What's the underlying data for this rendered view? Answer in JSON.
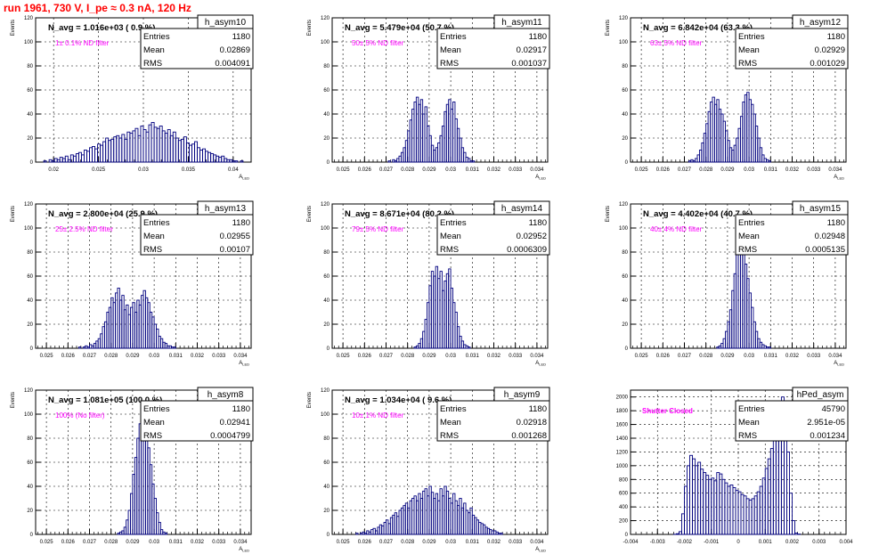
{
  "run_title": "run 1961,   730 V, I_pe ≈ 0.3 nA, 120 Hz",
  "colors": {
    "histogram": "#00007f",
    "annotation": "#ff00ff",
    "title": "#ff0000"
  },
  "chart_data": [
    {
      "type": "histogram",
      "name": "h_asym10",
      "navg": "N_avg = 1.016e+03 ( 0.9 %)",
      "note": "1± 0.1% ND filter",
      "stats": [
        [
          "Entries",
          "1180"
        ],
        [
          "Mean",
          "0.02869"
        ],
        [
          "RMS",
          "0.004091"
        ]
      ],
      "ylabel": "Events",
      "xlabel": "A_LED",
      "xlim": [
        0.018,
        0.042
      ],
      "ylim": [
        0,
        120
      ],
      "xticks": [
        "0.02",
        "0.025",
        "0.03",
        "0.035",
        "0.04"
      ],
      "xtick_values": [
        0.02,
        0.025,
        0.03,
        0.035,
        0.04
      ],
      "yticks": [
        0,
        20,
        40,
        60,
        80,
        100,
        120
      ],
      "bins": 80,
      "counts": [
        0,
        0,
        0,
        1,
        0,
        2,
        1,
        3,
        2,
        4,
        3,
        5,
        2,
        6,
        5,
        7,
        8,
        6,
        10,
        9,
        12,
        13,
        11,
        15,
        14,
        17,
        20,
        18,
        19,
        21,
        22,
        20,
        23,
        19,
        25,
        24,
        26,
        28,
        22,
        30,
        27,
        25,
        31,
        33,
        29,
        28,
        30,
        26,
        24,
        27,
        22,
        25,
        20,
        18,
        19,
        21,
        16,
        14,
        15,
        17,
        12,
        10,
        11,
        9,
        8,
        7,
        6,
        5,
        4,
        5,
        3,
        2,
        2,
        1,
        1,
        0,
        1,
        0,
        0,
        0
      ]
    },
    {
      "type": "histogram",
      "name": "h_asym11",
      "navg": "N_avg = 5.479e+04 (50.7 %)",
      "note": "50± 5% ND filter",
      "stats": [
        [
          "Entries",
          "1180"
        ],
        [
          "Mean",
          "0.02917"
        ],
        [
          "RMS",
          "0.001037"
        ]
      ],
      "ylabel": "Events",
      "xlabel": "A_LED",
      "xlim": [
        0.0245,
        0.0345
      ],
      "ylim": [
        0,
        120
      ],
      "xticks": [
        "0.025",
        "0.026",
        "0.027",
        "0.028",
        "0.029",
        "0.03",
        "0.031",
        "0.032",
        "0.033",
        "0.034"
      ],
      "xtick_values": [
        0.025,
        0.026,
        0.027,
        0.028,
        0.029,
        0.03,
        0.031,
        0.032,
        0.033,
        0.034
      ],
      "yticks": [
        0,
        20,
        40,
        60,
        80,
        100,
        120
      ],
      "bins": 100,
      "counts": [
        0,
        0,
        0,
        0,
        0,
        0,
        0,
        0,
        0,
        0,
        0,
        0,
        0,
        0,
        0,
        0,
        0,
        0,
        0,
        0,
        0,
        0,
        0,
        0,
        0,
        0,
        1,
        0,
        2,
        1,
        3,
        5,
        8,
        12,
        18,
        26,
        35,
        44,
        50,
        54,
        48,
        52,
        40,
        46,
        30,
        22,
        14,
        10,
        12,
        16,
        22,
        30,
        42,
        48,
        52,
        44,
        50,
        36,
        28,
        20,
        12,
        8,
        4,
        3,
        1,
        1,
        0,
        0,
        0,
        0,
        0,
        0,
        0,
        0,
        0,
        0,
        0,
        0,
        0,
        0,
        0,
        0,
        0,
        0,
        0,
        0,
        0,
        0,
        0,
        0,
        0,
        0,
        0,
        0,
        0,
        0,
        0,
        0,
        0,
        0
      ]
    },
    {
      "type": "histogram",
      "name": "h_asym12",
      "navg": "N_avg = 6.842e+04 (63.3 %)",
      "note": "63± 5% ND filter",
      "stats": [
        [
          "Entries",
          "1180"
        ],
        [
          "Mean",
          "0.02929"
        ],
        [
          "RMS",
          "0.001029"
        ]
      ],
      "ylabel": "Events",
      "xlabel": "A_LED",
      "xlim": [
        0.0245,
        0.0345
      ],
      "ylim": [
        0,
        120
      ],
      "xticks": [
        "0.025",
        "0.026",
        "0.027",
        "0.028",
        "0.029",
        "0.03",
        "0.031",
        "0.032",
        "0.033",
        "0.034"
      ],
      "xtick_values": [
        0.025,
        0.026,
        0.027,
        0.028,
        0.029,
        0.03,
        0.031,
        0.032,
        0.033,
        0.034
      ],
      "yticks": [
        0,
        20,
        40,
        60,
        80,
        100,
        120
      ],
      "bins": 100,
      "counts": [
        0,
        0,
        0,
        0,
        0,
        0,
        0,
        0,
        0,
        0,
        0,
        0,
        0,
        0,
        0,
        0,
        0,
        0,
        0,
        0,
        0,
        0,
        0,
        0,
        0,
        0,
        0,
        1,
        2,
        1,
        3,
        6,
        10,
        16,
        24,
        32,
        42,
        50,
        54,
        48,
        52,
        44,
        40,
        34,
        26,
        18,
        12,
        10,
        14,
        20,
        28,
        38,
        50,
        56,
        58,
        52,
        48,
        40,
        30,
        20,
        12,
        6,
        3,
        2,
        1,
        0,
        0,
        0,
        0,
        0,
        0,
        0,
        0,
        0,
        0,
        0,
        0,
        0,
        0,
        0,
        0,
        0,
        0,
        0,
        0,
        0,
        0,
        0,
        0,
        0,
        0,
        0,
        0,
        0,
        0,
        0,
        0,
        0,
        0,
        0
      ]
    },
    {
      "type": "histogram",
      "name": "h_asym13",
      "navg": "N_avg = 2.800e+04 (25.9 %)",
      "note": "25± 2.5% ND filter",
      "stats": [
        [
          "Entries",
          "1180"
        ],
        [
          "Mean",
          "0.02955"
        ],
        [
          "RMS",
          "0.00107"
        ]
      ],
      "ylabel": "Events",
      "xlabel": "A_LED",
      "xlim": [
        0.0245,
        0.0345
      ],
      "ylim": [
        0,
        120
      ],
      "xticks": [
        "0.025",
        "0.026",
        "0.027",
        "0.028",
        "0.029",
        "0.03",
        "0.031",
        "0.032",
        "0.033",
        "0.034"
      ],
      "xtick_values": [
        0.025,
        0.026,
        0.027,
        0.028,
        0.029,
        0.03,
        0.031,
        0.032,
        0.033,
        0.034
      ],
      "yticks": [
        0,
        20,
        40,
        60,
        80,
        100,
        120
      ],
      "bins": 100,
      "counts": [
        0,
        0,
        0,
        0,
        0,
        0,
        0,
        0,
        0,
        0,
        0,
        0,
        0,
        0,
        0,
        0,
        0,
        0,
        0,
        0,
        1,
        0,
        1,
        2,
        1,
        3,
        2,
        4,
        6,
        8,
        12,
        18,
        22,
        30,
        34,
        42,
        38,
        46,
        50,
        40,
        44,
        32,
        36,
        28,
        34,
        38,
        30,
        40,
        36,
        44,
        48,
        42,
        38,
        30,
        26,
        20,
        16,
        10,
        8,
        5,
        4,
        2,
        2,
        1,
        1,
        0,
        0,
        0,
        0,
        0,
        0,
        0,
        0,
        0,
        0,
        0,
        0,
        0,
        0,
        0,
        0,
        0,
        0,
        0,
        0,
        0,
        0,
        0,
        0,
        0,
        0,
        0,
        0,
        0,
        0,
        0,
        0,
        0,
        0,
        0
      ]
    },
    {
      "type": "histogram",
      "name": "h_asym14",
      "navg": "N_avg = 8.671e+04 (80.2 %)",
      "note": "79± 5% ND filter",
      "stats": [
        [
          "Entries",
          "1180"
        ],
        [
          "Mean",
          "0.02952"
        ],
        [
          "RMS",
          "0.0006309"
        ]
      ],
      "ylabel": "Events",
      "xlabel": "A_LED",
      "xlim": [
        0.0245,
        0.0345
      ],
      "ylim": [
        0,
        120
      ],
      "xticks": [
        "0.025",
        "0.026",
        "0.027",
        "0.028",
        "0.029",
        "0.03",
        "0.031",
        "0.032",
        "0.033",
        "0.034"
      ],
      "xtick_values": [
        0.025,
        0.026,
        0.027,
        0.028,
        0.029,
        0.03,
        0.031,
        0.032,
        0.033,
        0.034
      ],
      "yticks": [
        0,
        20,
        40,
        60,
        80,
        100,
        120
      ],
      "bins": 100,
      "counts": [
        0,
        0,
        0,
        0,
        0,
        0,
        0,
        0,
        0,
        0,
        0,
        0,
        0,
        0,
        0,
        0,
        0,
        0,
        0,
        0,
        0,
        0,
        0,
        0,
        0,
        0,
        0,
        0,
        0,
        0,
        0,
        0,
        0,
        0,
        0,
        0,
        0,
        0,
        1,
        2,
        4,
        8,
        14,
        24,
        38,
        52,
        64,
        60,
        68,
        58,
        64,
        48,
        56,
        62,
        66,
        50,
        38,
        30,
        18,
        10,
        6,
        3,
        2,
        1,
        0,
        0,
        0,
        0,
        0,
        0,
        0,
        0,
        0,
        0,
        0,
        0,
        0,
        0,
        0,
        0,
        0,
        0,
        0,
        0,
        0,
        0,
        0,
        0,
        0,
        0,
        0,
        0,
        0,
        0,
        0,
        0,
        0,
        0,
        0,
        0
      ]
    },
    {
      "type": "histogram",
      "name": "h_asym15",
      "navg": "N_avg = 4.402e+04 (40.7 %)",
      "note": "40± 4% ND filter",
      "stats": [
        [
          "Entries",
          "1180"
        ],
        [
          "Mean",
          "0.02948"
        ],
        [
          "RMS",
          "0.0005135"
        ]
      ],
      "ylabel": "Events",
      "xlabel": "A_LED",
      "xlim": [
        0.0245,
        0.0345
      ],
      "ylim": [
        0,
        120
      ],
      "xticks": [
        "0.025",
        "0.026",
        "0.027",
        "0.028",
        "0.029",
        "0.03",
        "0.031",
        "0.032",
        "0.033",
        "0.034"
      ],
      "xtick_values": [
        0.025,
        0.026,
        0.027,
        0.028,
        0.029,
        0.03,
        0.031,
        0.032,
        0.033,
        0.034
      ],
      "yticks": [
        0,
        20,
        40,
        60,
        80,
        100,
        120
      ],
      "bins": 100,
      "counts": [
        0,
        0,
        0,
        0,
        0,
        0,
        0,
        0,
        0,
        0,
        0,
        0,
        0,
        0,
        0,
        0,
        0,
        0,
        0,
        0,
        0,
        0,
        0,
        0,
        0,
        0,
        0,
        0,
        0,
        0,
        0,
        0,
        0,
        0,
        0,
        0,
        0,
        0,
        0,
        0,
        1,
        2,
        4,
        8,
        14,
        22,
        32,
        48,
        62,
        80,
        98,
        84,
        90,
        70,
        58,
        46,
        34,
        22,
        14,
        8,
        5,
        3,
        2,
        1,
        1,
        0,
        0,
        0,
        0,
        0,
        0,
        0,
        0,
        0,
        0,
        0,
        0,
        0,
        0,
        0,
        0,
        0,
        0,
        0,
        0,
        0,
        0,
        0,
        0,
        0,
        0,
        0,
        0,
        0,
        0,
        0,
        0,
        0,
        0,
        0
      ]
    },
    {
      "type": "histogram",
      "name": "h_asym8",
      "navg": "N_avg = 1.081e+05 (100.0 %)",
      "note": "100% (No filter)",
      "stats": [
        [
          "Entries",
          "1180"
        ],
        [
          "Mean",
          "0.02941"
        ],
        [
          "RMS",
          "0.0004799"
        ]
      ],
      "ylabel": "Events",
      "xlabel": "A_LED",
      "xlim": [
        0.0245,
        0.0345
      ],
      "ylim": [
        0,
        120
      ],
      "xticks": [
        "0.025",
        "0.026",
        "0.027",
        "0.028",
        "0.029",
        "0.03",
        "0.031",
        "0.032",
        "0.033",
        "0.034"
      ],
      "xtick_values": [
        0.025,
        0.026,
        0.027,
        0.028,
        0.029,
        0.03,
        0.031,
        0.032,
        0.033,
        0.034
      ],
      "yticks": [
        0,
        20,
        40,
        60,
        80,
        100,
        120
      ],
      "bins": 100,
      "counts": [
        0,
        0,
        0,
        0,
        0,
        0,
        0,
        0,
        0,
        0,
        0,
        0,
        0,
        0,
        0,
        0,
        0,
        0,
        0,
        0,
        0,
        0,
        0,
        0,
        0,
        0,
        0,
        0,
        0,
        0,
        0,
        0,
        0,
        0,
        0,
        0,
        0,
        0,
        1,
        2,
        3,
        6,
        12,
        20,
        34,
        50,
        64,
        80,
        92,
        108,
        90,
        84,
        72,
        58,
        42,
        30,
        18,
        10,
        4,
        2,
        1,
        0,
        0,
        0,
        0,
        0,
        0,
        0,
        0,
        0,
        0,
        0,
        0,
        0,
        0,
        0,
        0,
        0,
        0,
        0,
        0,
        0,
        0,
        0,
        0,
        0,
        0,
        0,
        0,
        0,
        0,
        0,
        0,
        0,
        0,
        0,
        0,
        0,
        0,
        0
      ]
    },
    {
      "type": "histogram",
      "name": "h_asym9",
      "navg": "N_avg = 1.034e+04 ( 9.6 %)",
      "note": "10± 1% ND filter",
      "stats": [
        [
          "Entries",
          "1180"
        ],
        [
          "Mean",
          "0.02918"
        ],
        [
          "RMS",
          "0.001268"
        ]
      ],
      "ylabel": "Events",
      "xlabel": "A_LED",
      "xlim": [
        0.0245,
        0.0345
      ],
      "ylim": [
        0,
        120
      ],
      "xticks": [
        "0.025",
        "0.026",
        "0.027",
        "0.028",
        "0.029",
        "0.03",
        "0.031",
        "0.032",
        "0.033",
        "0.034"
      ],
      "xtick_values": [
        0.025,
        0.026,
        0.027,
        0.028,
        0.029,
        0.03,
        0.031,
        0.032,
        0.033,
        0.034
      ],
      "yticks": [
        0,
        20,
        40,
        60,
        80,
        100,
        120
      ],
      "bins": 100,
      "counts": [
        0,
        0,
        0,
        0,
        0,
        0,
        0,
        0,
        0,
        0,
        0,
        1,
        0,
        1,
        2,
        1,
        3,
        2,
        4,
        5,
        3,
        6,
        8,
        7,
        10,
        12,
        9,
        14,
        16,
        18,
        15,
        20,
        22,
        24,
        26,
        22,
        28,
        30,
        32,
        28,
        34,
        30,
        36,
        38,
        32,
        40,
        35,
        30,
        34,
        28,
        38,
        32,
        40,
        36,
        30,
        26,
        34,
        28,
        24,
        30,
        22,
        26,
        20,
        18,
        22,
        16,
        14,
        12,
        10,
        9,
        8,
        6,
        5,
        4,
        3,
        3,
        2,
        1,
        1,
        0,
        0,
        0,
        0,
        0,
        0,
        0,
        0,
        0,
        0,
        0,
        0,
        0,
        0,
        0,
        0,
        0,
        0,
        0,
        0,
        0
      ]
    },
    {
      "type": "histogram",
      "name": "hPed_asym",
      "navg": "",
      "note": "Shutter Closed",
      "stats": [
        [
          "Entries",
          "45790"
        ],
        [
          "Mean",
          "2.951e-05"
        ],
        [
          "RMS",
          "0.001234"
        ]
      ],
      "ylabel": "",
      "xlabel": "",
      "xlim": [
        -0.004,
        0.004
      ],
      "ylim": [
        0,
        2100
      ],
      "xticks": [
        "-0.004",
        "-0.003",
        "-0.002",
        "-0.001",
        "0",
        "0.001",
        "0.002",
        "0.003",
        "0.004"
      ],
      "xtick_values": [
        -0.004,
        -0.003,
        -0.002,
        -0.001,
        0,
        0.001,
        0.002,
        0.003,
        0.004
      ],
      "yticks": [
        0,
        200,
        400,
        600,
        800,
        1000,
        1200,
        1400,
        1600,
        1800,
        2000
      ],
      "bins": 80,
      "counts": [
        0,
        0,
        0,
        0,
        0,
        0,
        0,
        0,
        0,
        0,
        0,
        0,
        0,
        0,
        0,
        0,
        2,
        10,
        40,
        300,
        700,
        1000,
        1150,
        1100,
        1000,
        1050,
        950,
        900,
        860,
        800,
        820,
        780,
        900,
        880,
        800,
        750,
        700,
        720,
        680,
        640,
        620,
        580,
        560,
        520,
        500,
        520,
        560,
        620,
        700,
        820,
        960,
        1100,
        1250,
        1450,
        1600,
        1800,
        2000,
        1700,
        1200,
        600,
        200,
        20,
        5,
        0,
        0,
        0,
        0,
        0,
        0,
        0,
        0,
        0,
        0,
        0,
        0,
        0,
        0,
        0,
        0,
        0
      ]
    }
  ]
}
